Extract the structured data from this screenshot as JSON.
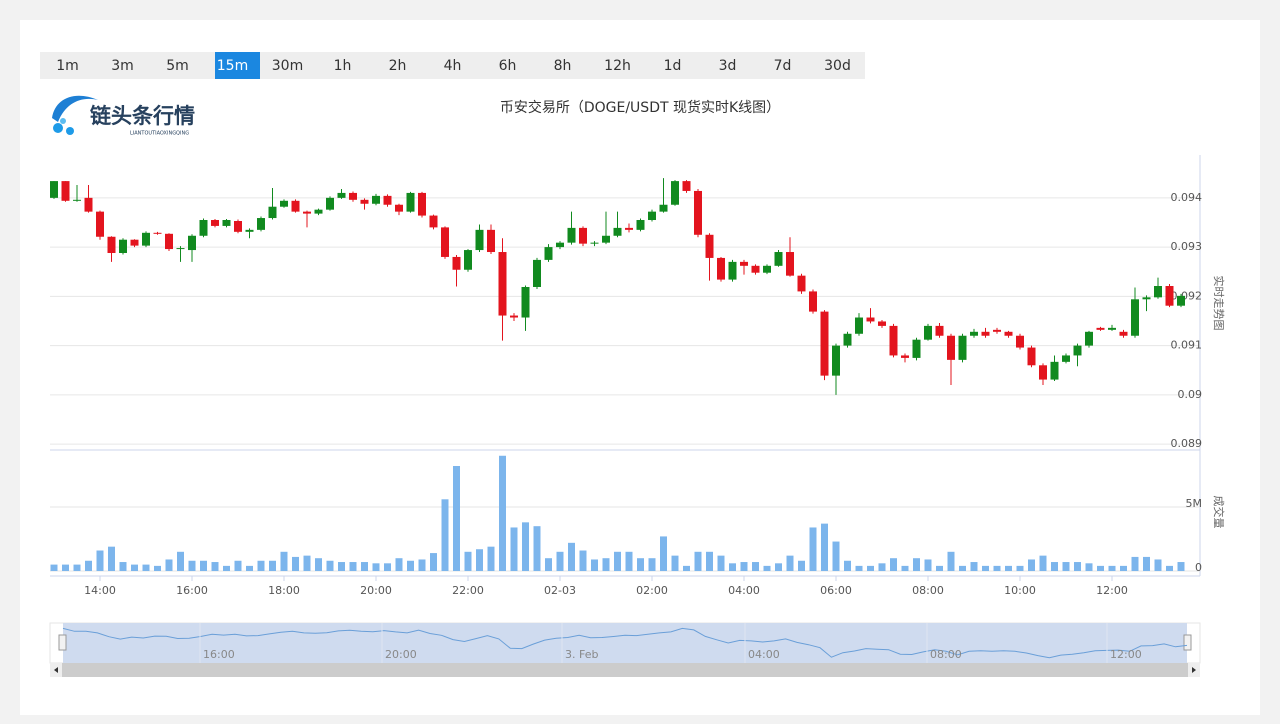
{
  "toolbar": {
    "intervals": [
      "1m",
      "3m",
      "5m",
      "15m",
      "30m",
      "1h",
      "2h",
      "4h",
      "6h",
      "8h",
      "12h",
      "1d",
      "3d",
      "7d",
      "30d"
    ],
    "active_index": 3
  },
  "logo": {
    "name": "链头条行情",
    "subtitle": "LIANTOUTIAOXINGQING"
  },
  "chart_data": {
    "type": "candlestick",
    "title": "币安交易所（DOGE/USDT 现货实时K线图）",
    "categories": [
      null,
      null,
      null,
      null,
      "14:00",
      null,
      null,
      null,
      null,
      null,
      null,
      null,
      "16:00",
      null,
      null,
      null,
      null,
      null,
      null,
      null,
      "18:00",
      null,
      null,
      null,
      null,
      null,
      null,
      null,
      "20:00",
      null,
      null,
      null,
      null,
      null,
      null,
      null,
      "22:00",
      null,
      null,
      null,
      null,
      null,
      null,
      null,
      "02-03",
      null,
      null,
      null,
      null,
      null,
      null,
      null,
      "02:00",
      null,
      null,
      null,
      null,
      null,
      null,
      null,
      "04:00",
      null,
      null,
      null,
      null,
      null,
      null,
      null,
      "06:00",
      null,
      null,
      null,
      null,
      null,
      null,
      null,
      "08:00",
      null,
      null,
      null,
      null,
      null,
      null,
      null,
      "10:00",
      null,
      null,
      null,
      null,
      null,
      null,
      null,
      "12:00",
      null,
      null,
      null,
      null,
      null,
      null
    ],
    "open": [
      0.094,
      0.09434,
      0.09394,
      0.094,
      0.09372,
      0.09321,
      0.09288,
      0.09315,
      0.09303,
      0.09329,
      0.09327,
      0.09296,
      0.09294,
      0.09323,
      0.09355,
      0.09343,
      0.09353,
      0.09331,
      0.09335,
      0.09359,
      0.09382,
      0.09394,
      0.09372,
      0.09368,
      0.09376,
      0.094,
      0.0941,
      0.09396,
      0.09388,
      0.09404,
      0.09386,
      0.09372,
      0.0941,
      0.09364,
      0.0934,
      0.0928,
      0.09254,
      0.09294,
      0.09335,
      0.0929,
      0.09161,
      0.09157,
      0.09219,
      0.09274,
      0.093,
      0.09309,
      0.09339,
      0.09307,
      0.09309,
      0.09323,
      0.09339,
      0.09335,
      0.09355,
      0.09372,
      0.09386,
      0.09434,
      0.09414,
      0.09325,
      0.09278,
      0.09234,
      0.0927,
      0.09262,
      0.09248,
      0.09262,
      0.0929,
      0.09242,
      0.0921,
      0.09169,
      0.09039,
      0.091,
      0.09124,
      0.09157,
      0.09149,
      0.0914,
      0.0908,
      0.09075,
      0.09112,
      0.0914,
      0.0912,
      0.09071,
      0.0912,
      0.09128,
      0.09132,
      0.09128,
      0.0912,
      0.09096,
      0.0906,
      0.09031,
      0.09067,
      0.0908,
      0.091,
      0.09136,
      0.09132,
      0.09128,
      0.0912,
      0.09194,
      0.09198,
      0.09221,
      0.09181
    ],
    "high": [
      0.09434,
      0.09434,
      0.09426,
      0.09426,
      0.09374,
      0.09322,
      0.09318,
      0.09316,
      0.09332,
      0.09331,
      0.09328,
      0.09302,
      0.09326,
      0.09358,
      0.09357,
      0.09357,
      0.09356,
      0.09338,
      0.09362,
      0.0942,
      0.09397,
      0.09397,
      0.09374,
      0.09378,
      0.09403,
      0.09418,
      0.09413,
      0.09399,
      0.09408,
      0.09407,
      0.09388,
      0.09412,
      0.09412,
      0.09366,
      0.09342,
      0.09284,
      0.09296,
      0.09346,
      0.09346,
      0.09318,
      0.09166,
      0.09222,
      0.09278,
      0.09306,
      0.09312,
      0.09372,
      0.09342,
      0.09312,
      0.09372,
      0.09372,
      0.09348,
      0.09358,
      0.09376,
      0.0944,
      0.09436,
      0.09436,
      0.09418,
      0.09328,
      0.0928,
      0.09274,
      0.09274,
      0.09265,
      0.09265,
      0.09294,
      0.0932,
      0.09246,
      0.09214,
      0.09172,
      0.09104,
      0.09128,
      0.09166,
      0.09176,
      0.09152,
      0.09144,
      0.09084,
      0.09116,
      0.09144,
      0.09146,
      0.09124,
      0.09124,
      0.09134,
      0.09136,
      0.09136,
      0.0913,
      0.09124,
      0.091,
      0.09064,
      0.0908,
      0.09084,
      0.09104,
      0.0913,
      0.09138,
      0.09142,
      0.09132,
      0.09218,
      0.09202,
      0.09238,
      0.09225,
      0.09205
    ],
    "low": [
      0.09398,
      0.09392,
      0.09392,
      0.0937,
      0.09315,
      0.0927,
      0.09285,
      0.093,
      0.093,
      0.09325,
      0.09292,
      0.0927,
      0.0927,
      0.0932,
      0.0934,
      0.0934,
      0.09328,
      0.09318,
      0.09332,
      0.09356,
      0.0938,
      0.0937,
      0.0934,
      0.09365,
      0.09374,
      0.09398,
      0.09392,
      0.09376,
      0.09385,
      0.09382,
      0.09365,
      0.0937,
      0.0936,
      0.09336,
      0.09276,
      0.0922,
      0.0925,
      0.0929,
      0.09286,
      0.0911,
      0.0915,
      0.0913,
      0.09215,
      0.0927,
      0.09296,
      0.09305,
      0.09302,
      0.09302,
      0.09306,
      0.0932,
      0.0933,
      0.09332,
      0.09352,
      0.0937,
      0.09384,
      0.0941,
      0.0932,
      0.09232,
      0.0923,
      0.0923,
      0.09244,
      0.09244,
      0.09245,
      0.0926,
      0.0924,
      0.09205,
      0.09165,
      0.0903,
      0.09,
      0.09096,
      0.0912,
      0.09145,
      0.09136,
      0.09076,
      0.09066,
      0.0907,
      0.0911,
      0.09116,
      0.0902,
      0.09066,
      0.09116,
      0.09116,
      0.09124,
      0.09116,
      0.09092,
      0.09056,
      0.0902,
      0.09028,
      0.09064,
      0.09058,
      0.09096,
      0.0913,
      0.0913,
      0.09116,
      0.09116,
      0.0917,
      0.09195,
      0.09178,
      0.09178
    ],
    "close": [
      0.09434,
      0.09394,
      0.09396,
      0.09372,
      0.09321,
      0.09288,
      0.09315,
      0.09303,
      0.09329,
      0.09327,
      0.09296,
      0.09298,
      0.09323,
      0.09355,
      0.09343,
      0.09355,
      0.09331,
      0.09335,
      0.09359,
      0.09382,
      0.09394,
      0.09372,
      0.09368,
      0.09376,
      0.094,
      0.0941,
      0.09396,
      0.09388,
      0.09404,
      0.09386,
      0.09372,
      0.0941,
      0.09364,
      0.0934,
      0.0928,
      0.09254,
      0.09294,
      0.09335,
      0.0929,
      0.09161,
      0.09157,
      0.09219,
      0.09274,
      0.093,
      0.09309,
      0.09339,
      0.09307,
      0.09309,
      0.09323,
      0.09339,
      0.09335,
      0.09355,
      0.09372,
      0.09386,
      0.09434,
      0.09414,
      0.09325,
      0.09278,
      0.09234,
      0.0927,
      0.09262,
      0.09248,
      0.09262,
      0.0929,
      0.09242,
      0.0921,
      0.09169,
      0.09039,
      0.091,
      0.09124,
      0.09157,
      0.09149,
      0.0914,
      0.0908,
      0.09075,
      0.09112,
      0.0914,
      0.0912,
      0.09071,
      0.0912,
      0.09128,
      0.0912,
      0.09128,
      0.0912,
      0.09096,
      0.0906,
      0.09031,
      0.09067,
      0.0908,
      0.091,
      0.09128,
      0.09132,
      0.09136,
      0.0912,
      0.09194,
      0.09198,
      0.09221,
      0.09181,
      0.09201
    ],
    "volume": [
      500000,
      500000,
      500000,
      800000,
      1600000,
      1900000,
      700000,
      500000,
      500000,
      400000,
      900000,
      1500000,
      800000,
      800000,
      700000,
      400000,
      800000,
      400000,
      800000,
      800000,
      1500000,
      1100000,
      1200000,
      1000000,
      800000,
      700000,
      700000,
      700000,
      600000,
      600000,
      1000000,
      800000,
      900000,
      1400000,
      5600000,
      8200000,
      1500000,
      1700000,
      1900000,
      9000000,
      3400000,
      3800000,
      3500000,
      1000000,
      1500000,
      2200000,
      1600000,
      900000,
      1000000,
      1500000,
      1500000,
      1000000,
      1000000,
      2700000,
      1200000,
      400000,
      1500000,
      1500000,
      1200000,
      600000,
      700000,
      700000,
      400000,
      600000,
      1200000,
      800000,
      3400000,
      3700000,
      2300000,
      800000,
      400000,
      400000,
      600000,
      1000000,
      400000,
      1000000,
      900000,
      400000,
      1500000,
      400000,
      700000,
      400000,
      400000,
      400000,
      400000,
      900000,
      1200000,
      700000,
      700000,
      700000,
      600000,
      400000,
      400000,
      400000,
      1100000,
      1100000,
      900000,
      400000,
      700000
    ],
    "up_color": "#118a1f",
    "down_color": "#e3141e",
    "volume_color": "#7cb5ec",
    "ylim": [
      0.08888,
      0.09487
    ],
    "yticks": [
      0.089,
      0.09,
      0.091,
      0.092,
      0.093,
      0.094
    ],
    "y2lim": [
      0,
      9450000
    ],
    "y2ticks": [
      0,
      {
        "value": 5000000,
        "label": "5M"
      }
    ],
    "price_axis_label": "实时走势图",
    "volume_axis_label": "成交量",
    "navigator_labels": [
      "16:00",
      "20:00",
      "3. Feb",
      "04:00",
      "08:00",
      "12:00"
    ],
    "grid": true
  }
}
